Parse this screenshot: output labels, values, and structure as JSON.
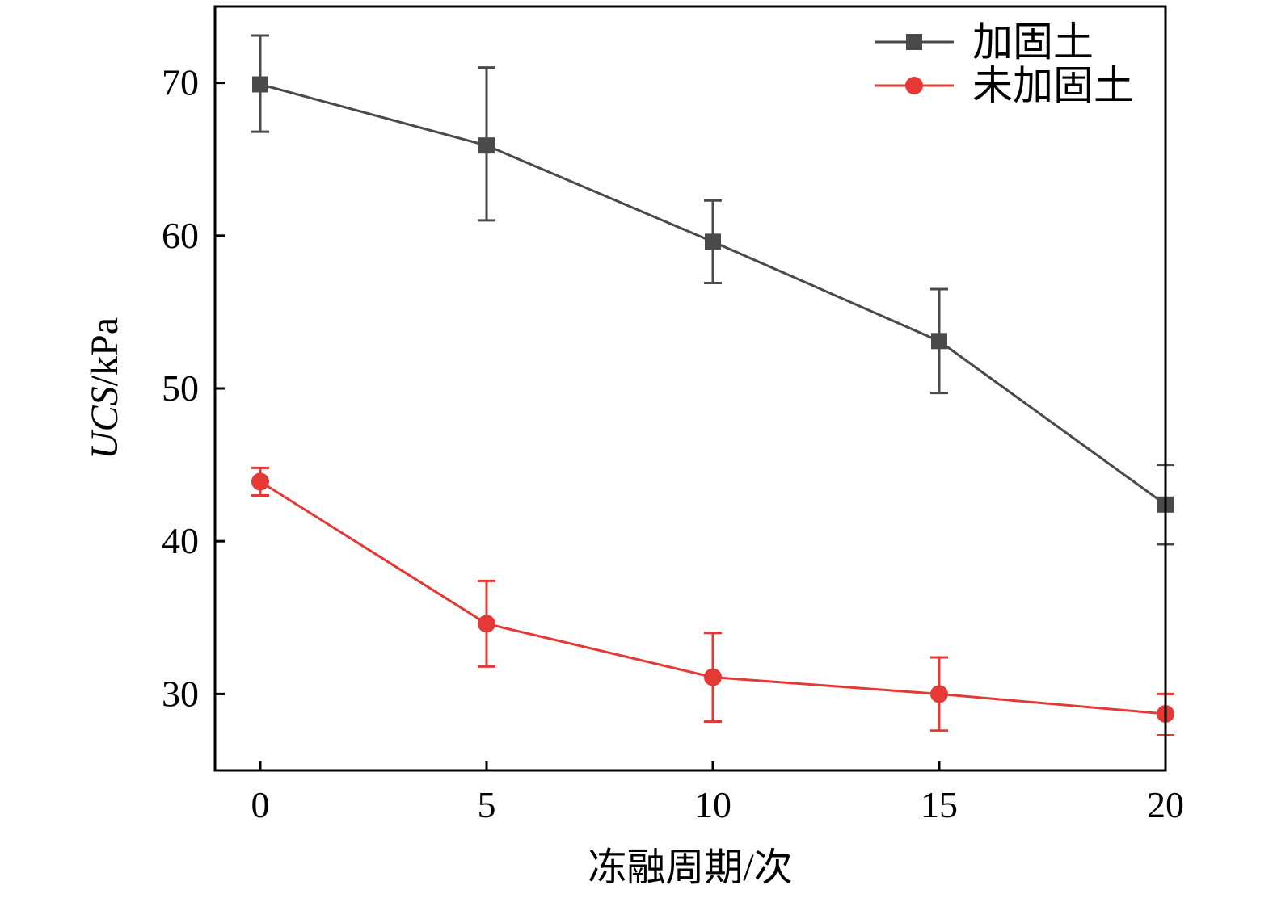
{
  "chart_data": {
    "type": "line",
    "title": "",
    "xlabel": "冻融周期/次",
    "ylabel_italic": "UCS",
    "ylabel_rest": "/kPa",
    "x": [
      0,
      5,
      10,
      15,
      20
    ],
    "xlim": [
      -1,
      20
    ],
    "ylim": [
      25,
      75
    ],
    "xticks": [
      0,
      5,
      10,
      15,
      20
    ],
    "yticks": [
      30,
      40,
      50,
      60,
      70
    ],
    "grid": false,
    "legend_position": "top-right",
    "series": [
      {
        "name": "加固土",
        "color": "#4a4a4a",
        "marker": "square",
        "values": [
          69.9,
          65.9,
          59.6,
          53.1,
          42.4
        ],
        "error_low": [
          66.8,
          61.0,
          56.9,
          49.7,
          39.8
        ],
        "error_high": [
          73.1,
          71.0,
          62.3,
          56.5,
          45.0
        ]
      },
      {
        "name": "未加固土",
        "color": "#e53935",
        "marker": "circle",
        "values": [
          43.9,
          34.6,
          31.1,
          30.0,
          28.7
        ],
        "error_low": [
          43.0,
          31.8,
          28.2,
          27.6,
          27.3
        ],
        "error_high": [
          44.8,
          37.4,
          34.0,
          32.4,
          30.0
        ]
      }
    ]
  }
}
